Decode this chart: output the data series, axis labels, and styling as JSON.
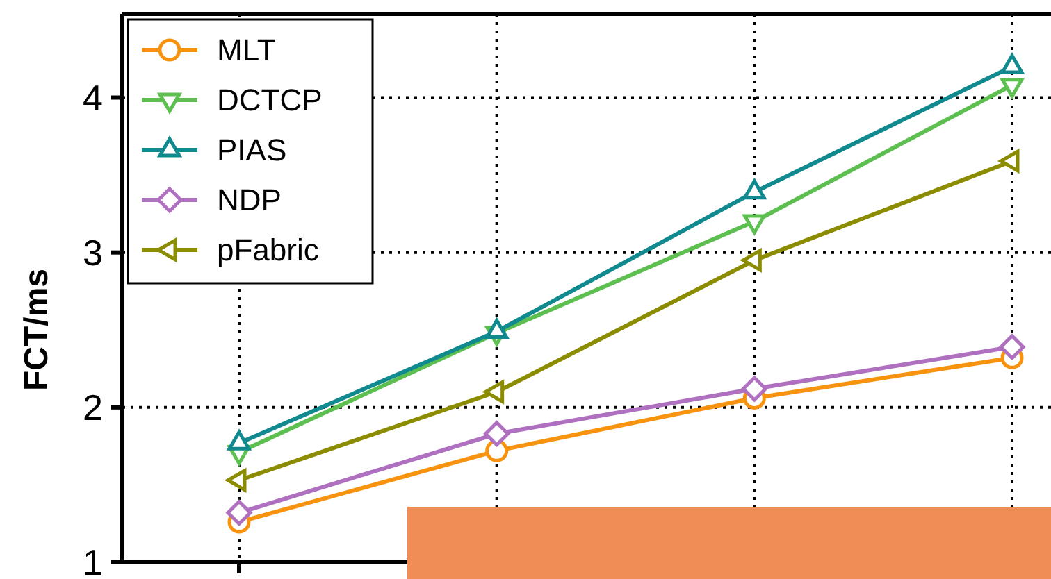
{
  "chart_data": {
    "type": "line",
    "ylabel": "FCT/ms",
    "categories": [
      null,
      null,
      null,
      null
    ],
    "ylim": [
      1,
      4.54
    ],
    "yticks": [
      1,
      2,
      3,
      4
    ],
    "grid": true,
    "legend": "top left",
    "line_style": "solid",
    "series": [
      {
        "name": "MLT",
        "color": "#f7930f",
        "marker": "circle",
        "values": [
          1.26,
          1.72,
          2.06,
          2.32
        ]
      },
      {
        "name": "DCTCP",
        "color": "#5cbf4f",
        "marker": "triangle-down",
        "values": [
          1.71,
          2.48,
          3.2,
          4.08
        ]
      },
      {
        "name": "PIAS",
        "color": "#108a8f",
        "marker": "triangle",
        "values": [
          1.77,
          2.49,
          3.39,
          4.2
        ]
      },
      {
        "name": "NDP",
        "color": "#b070c0",
        "marker": "diamond",
        "values": [
          1.32,
          1.83,
          2.12,
          2.39
        ]
      },
      {
        "name": "pFabric",
        "color": "#8c8c00",
        "marker": "triangle-left",
        "values": [
          1.53,
          2.1,
          2.95,
          3.59
        ]
      }
    ]
  }
}
